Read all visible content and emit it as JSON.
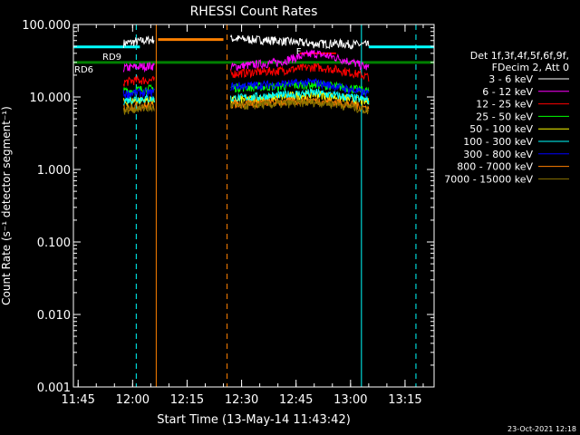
{
  "chart_data": {
    "type": "line",
    "title": "RHESSI Count Rates",
    "xlabel": "Start Time (13-May-14 11:43:42)",
    "ylabel": "Count Rate (s⁻¹ detector segment⁻¹)",
    "ylim": [
      0.001,
      100
    ],
    "yscale": "log",
    "xlim": [
      "11:43:42",
      "13:23:00"
    ],
    "x_ticks": [
      "11:45",
      "12:00",
      "12:15",
      "12:30",
      "12:45",
      "13:00",
      "13:15"
    ],
    "y_ticks": [
      "100.000",
      "10.000",
      "1.000",
      "0.100",
      "0.010",
      "0.001"
    ],
    "legend_position": "right",
    "legend_header": [
      "Det 1f,3f,4f,5f,6f,9f,",
      "FDecim 2, Att 0"
    ],
    "series": [
      {
        "name": "3 - 6 keV",
        "color": "#000000",
        "x": [
          "11:57:30",
          "12:01:00",
          "12:05:30",
          "12:27:00",
          "12:40:00",
          "12:50:00",
          "12:56:00",
          "13:05:00"
        ],
        "y": [
          55,
          58,
          62,
          64,
          60,
          54,
          55,
          52
        ]
      },
      {
        "name": "6 - 12 keV",
        "color": "#ff00ff",
        "x": [
          "11:57:30",
          "12:01:00",
          "12:05:30",
          "12:27:00",
          "12:40:00",
          "12:50:00",
          "12:56:00",
          "13:05:00"
        ],
        "y": [
          25,
          26,
          27,
          26,
          30,
          40,
          35,
          25
        ]
      },
      {
        "name": "12 - 25 keV",
        "color": "#ff0000",
        "x": [
          "11:57:30",
          "12:01:00",
          "12:05:30",
          "12:27:00",
          "12:40:00",
          "12:50:00",
          "12:56:00",
          "13:05:00"
        ],
        "y": [
          16,
          17,
          17,
          21,
          23,
          26,
          24,
          19
        ]
      },
      {
        "name": "25 - 50 keV",
        "color": "#00ff00",
        "x": [
          "11:57:30",
          "12:01:00",
          "12:05:30",
          "12:27:00",
          "12:40:00",
          "12:50:00",
          "12:56:00",
          "13:05:00"
        ],
        "y": [
          12,
          12.5,
          13,
          13.5,
          14,
          15,
          14,
          12
        ]
      },
      {
        "name": "50 - 100 keV",
        "color": "#ffff00",
        "x": [
          "11:57:30",
          "12:01:00",
          "12:05:30",
          "12:27:00",
          "12:40:00",
          "12:50:00",
          "12:56:00",
          "13:05:00"
        ],
        "y": [
          8.5,
          9,
          9,
          9,
          10,
          11,
          10,
          8.5
        ]
      },
      {
        "name": "100 - 300 keV",
        "color": "#00ffff",
        "x": [
          "11:57:30",
          "12:01:00",
          "12:05:30",
          "12:27:00",
          "12:40:00",
          "12:50:00",
          "12:56:00",
          "13:05:00"
        ],
        "y": [
          9,
          9.5,
          9.5,
          9.5,
          10.5,
          11.5,
          10.5,
          9
        ]
      },
      {
        "name": "300 - 800 keV",
        "color": "#0000ff",
        "x": [
          "11:57:30",
          "12:01:00",
          "12:05:30",
          "12:27:00",
          "12:40:00",
          "12:50:00",
          "12:56:00",
          "13:05:00"
        ],
        "y": [
          11,
          11.5,
          11.5,
          14,
          15,
          16,
          14,
          11
        ]
      },
      {
        "name": "800 - 7000 keV",
        "color": "#ff8000",
        "x": [
          "11:57:30",
          "12:01:00",
          "12:05:30",
          "12:27:00",
          "12:40:00",
          "12:50:00",
          "12:56:00",
          "13:05:00"
        ],
        "y": [
          7,
          7.5,
          7.5,
          8,
          8.5,
          9,
          8.5,
          7
        ]
      },
      {
        "name": "7000 - 15000 keV",
        "color": "#8b7500",
        "x": [
          "11:57:30",
          "12:01:00",
          "12:05:30",
          "12:27:00",
          "12:40:00",
          "12:50:00",
          "12:56:00",
          "13:05:00"
        ],
        "y": [
          6.5,
          7,
          7,
          7.5,
          8,
          8.5,
          8,
          6.5
        ]
      }
    ],
    "annotations": [
      "RD9",
      "RD6",
      "F"
    ],
    "colors": {
      "saa_bar": "#00ffff",
      "night_bar": "#008000",
      "attenuator_bar": "#ff8000",
      "flare_bar": "#ff0000"
    }
  },
  "footer_timestamp": "23-Oct-2021 12:18"
}
